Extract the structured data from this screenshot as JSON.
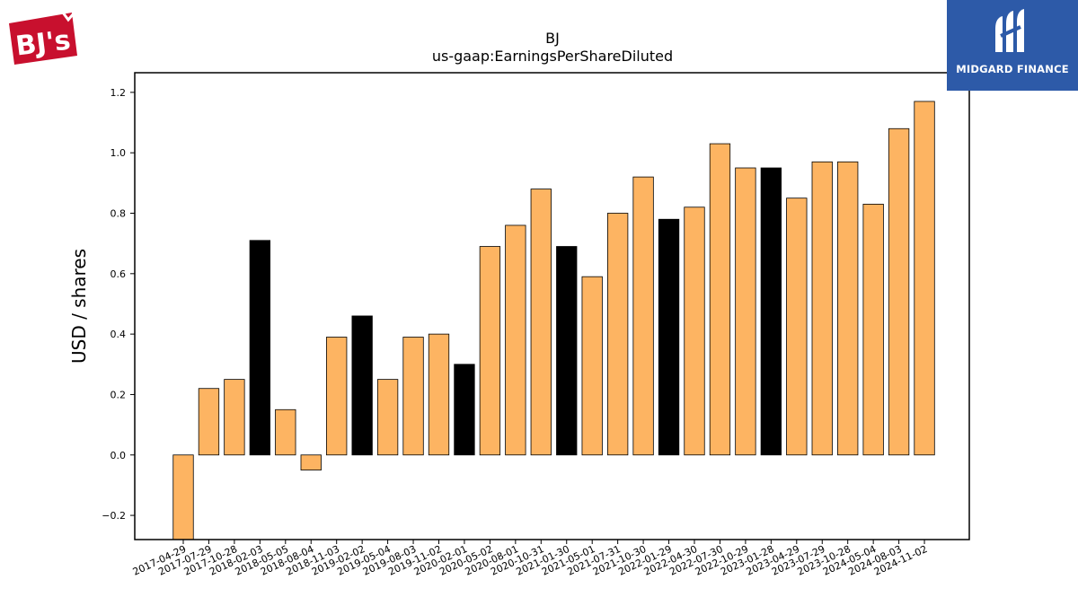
{
  "logos": {
    "left_text": "BJ's",
    "right_text": "MIDGARD FINANCE"
  },
  "chart_data": {
    "type": "bar",
    "title": "BJ",
    "subtitle": "us-gaap:EarningsPerShareDiluted",
    "xlabel": "",
    "ylabel": "USD / shares",
    "ylim": [
      -0.28,
      1.265
    ],
    "yticks": [
      -0.2,
      0.0,
      0.2,
      0.4,
      0.6,
      0.8,
      1.0,
      1.2
    ],
    "grid": false,
    "categories": [
      "2017-04-29",
      "2017-07-29",
      "2017-10-28",
      "2018-02-03",
      "2018-05-05",
      "2018-08-04",
      "2018-11-03",
      "2019-02-02",
      "2019-05-04",
      "2019-08-03",
      "2019-11-02",
      "2020-02-01",
      "2020-05-02",
      "2020-08-01",
      "2020-10-31",
      "2021-01-30",
      "2021-05-01",
      "2021-07-31",
      "2021-10-30",
      "2022-01-29",
      "2022-04-30",
      "2022-07-30",
      "2022-10-29",
      "2023-01-28",
      "2023-04-29",
      "2023-07-29",
      "2023-10-28",
      "2024-05-04",
      "2024-08-03",
      "2024-11-02"
    ],
    "values": [
      -0.28,
      0.22,
      0.25,
      0.71,
      0.15,
      -0.05,
      0.39,
      0.46,
      0.25,
      0.39,
      0.4,
      0.3,
      0.69,
      0.76,
      0.88,
      0.69,
      0.59,
      0.8,
      0.92,
      0.78,
      0.82,
      1.03,
      0.95,
      0.95,
      0.85,
      0.97,
      0.97,
      0.83,
      1.08,
      1.17
    ],
    "highlight": [
      false,
      false,
      false,
      true,
      false,
      false,
      false,
      true,
      false,
      false,
      false,
      true,
      false,
      false,
      false,
      true,
      false,
      false,
      false,
      true,
      false,
      false,
      false,
      true,
      false,
      false,
      false,
      false,
      false,
      false
    ],
    "colors": {
      "bar": "#fdb462",
      "highlight": "#000000",
      "edge": "#000000"
    }
  }
}
